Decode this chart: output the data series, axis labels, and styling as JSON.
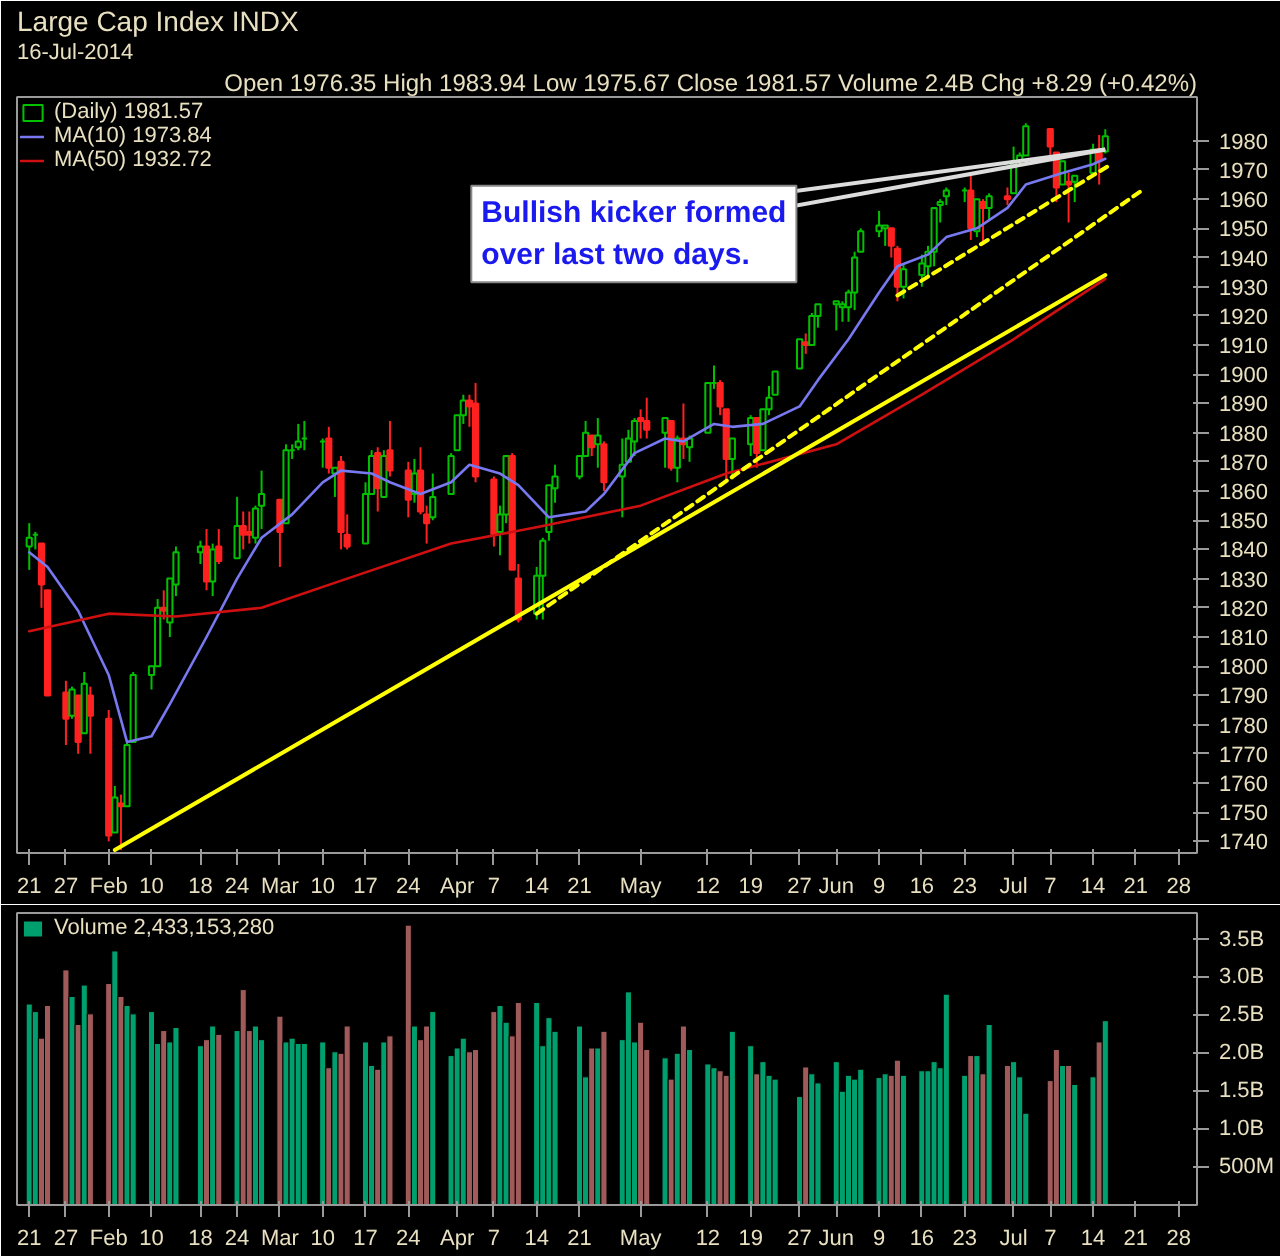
{
  "chart_data": [
    {
      "type": "candlestick",
      "title": "Large Cap Index INDX",
      "subtitle": "16-Jul-2014",
      "annotations": [
        "Open 1976.35 High 1983.94 Low 1975.67 Close 1981.57 Volume 2.4B Chg +8.29 (+0.42%)",
        {
          "text": "Bullish kicker formed\nover last two days.",
          "x": "2014-07-16",
          "y": 1977
        }
      ],
      "series": [
        {
          "type": "candlestick",
          "name": "(Daily) 1981.57",
          "x": [
            "2014-01-21",
            "2014-01-22",
            "2014-01-23",
            "2014-01-24",
            "2014-01-27",
            "2014-01-28",
            "2014-01-29",
            "2014-01-30",
            "2014-01-31",
            "2014-02-03",
            "2014-02-04",
            "2014-02-05",
            "2014-02-06",
            "2014-02-07",
            "2014-02-10",
            "2014-02-11",
            "2014-02-12",
            "2014-02-13",
            "2014-02-14",
            "2014-02-18",
            "2014-02-19",
            "2014-02-20",
            "2014-02-21",
            "2014-02-24",
            "2014-02-25",
            "2014-02-26",
            "2014-02-27",
            "2014-02-28",
            "2014-03-03",
            "2014-03-04",
            "2014-03-05",
            "2014-03-06",
            "2014-03-07",
            "2014-03-10",
            "2014-03-11",
            "2014-03-12",
            "2014-03-13",
            "2014-03-14",
            "2014-03-17",
            "2014-03-18",
            "2014-03-19",
            "2014-03-20",
            "2014-03-21",
            "2014-03-24",
            "2014-03-25",
            "2014-03-26",
            "2014-03-27",
            "2014-03-28",
            "2014-03-31",
            "2014-04-01",
            "2014-04-02",
            "2014-04-03",
            "2014-04-04",
            "2014-04-07",
            "2014-04-08",
            "2014-04-09",
            "2014-04-10",
            "2014-04-11",
            "2014-04-14",
            "2014-04-15",
            "2014-04-16",
            "2014-04-17",
            "2014-04-21",
            "2014-04-22",
            "2014-04-23",
            "2014-04-24",
            "2014-04-25",
            "2014-04-28",
            "2014-04-29",
            "2014-04-30",
            "2014-05-01",
            "2014-05-02",
            "2014-05-05",
            "2014-05-06",
            "2014-05-07",
            "2014-05-08",
            "2014-05-09",
            "2014-05-12",
            "2014-05-13",
            "2014-05-14",
            "2014-05-15",
            "2014-05-16",
            "2014-05-19",
            "2014-05-20",
            "2014-05-21",
            "2014-05-22",
            "2014-05-23",
            "2014-05-27",
            "2014-05-28",
            "2014-05-29",
            "2014-05-30",
            "2014-06-02",
            "2014-06-03",
            "2014-06-04",
            "2014-06-05",
            "2014-06-06",
            "2014-06-09",
            "2014-06-10",
            "2014-06-11",
            "2014-06-12",
            "2014-06-13",
            "2014-06-16",
            "2014-06-17",
            "2014-06-18",
            "2014-06-19",
            "2014-06-20",
            "2014-06-23",
            "2014-06-24",
            "2014-06-25",
            "2014-06-26",
            "2014-06-27",
            "2014-06-30",
            "2014-07-01",
            "2014-07-02",
            "2014-07-03",
            "2014-07-07",
            "2014-07-08",
            "2014-07-09",
            "2014-07-10",
            "2014-07-11",
            "2014-07-14",
            "2014-07-15",
            "2014-07-16"
          ],
          "ohlc": [
            [
              1841,
              1849,
              1833,
              1844
            ],
            [
              1845,
              1846,
              1840,
              1845
            ],
            [
              1842,
              1842,
              1820,
              1828
            ],
            [
              1826,
              1826,
              1790,
              1790
            ],
            [
              1791,
              1795,
              1773,
              1782
            ],
            [
              1783,
              1793,
              1782,
              1792
            ],
            [
              1790,
              1790,
              1770,
              1774
            ],
            [
              1777,
              1798,
              1777,
              1794
            ],
            [
              1790,
              1793,
              1770,
              1783
            ],
            [
              1782,
              1785,
              1740,
              1742
            ],
            [
              1743,
              1759,
              1743,
              1755
            ],
            [
              1753,
              1756,
              1737,
              1752
            ],
            [
              1752,
              1774,
              1752,
              1773
            ],
            [
              1774,
              1798,
              1774,
              1797
            ],
            [
              1797,
              1800,
              1792,
              1800
            ],
            [
              1800,
              1823,
              1800,
              1820
            ],
            [
              1820,
              1826,
              1816,
              1819
            ],
            [
              1815,
              1830,
              1810,
              1830
            ],
            [
              1828,
              1841,
              1824,
              1839
            ],
            [
              1839,
              1843,
              1835,
              1841
            ],
            [
              1841,
              1847,
              1826,
              1829
            ],
            [
              1829,
              1842,
              1824,
              1840
            ],
            [
              1841,
              1847,
              1835,
              1836
            ],
            [
              1837,
              1858,
              1837,
              1848
            ],
            [
              1848,
              1853,
              1840,
              1845
            ],
            [
              1846,
              1853,
              1842,
              1845
            ],
            [
              1844,
              1855,
              1842,
              1854
            ],
            [
              1855,
              1867,
              1847,
              1859
            ],
            [
              1857,
              1857,
              1834,
              1846
            ],
            [
              1849,
              1876,
              1849,
              1874
            ],
            [
              1874,
              1876,
              1871,
              1874
            ],
            [
              1875,
              1883,
              1874,
              1877
            ],
            [
              1878,
              1884,
              1874,
              1878
            ],
            [
              1877,
              1878,
              1868,
              1877
            ],
            [
              1878,
              1882,
              1866,
              1868
            ],
            [
              1866,
              1868,
              1858,
              1868
            ],
            [
              1870,
              1872,
              1840,
              1846
            ],
            [
              1845,
              1852,
              1840,
              1841
            ],
            [
              1842,
              1863,
              1842,
              1859
            ],
            [
              1859,
              1874,
              1859,
              1872
            ],
            [
              1873,
              1875,
              1853,
              1861
            ],
            [
              1858,
              1874,
              1858,
              1872
            ],
            [
              1874,
              1884,
              1865,
              1867
            ],
            [
              1867,
              1870,
              1851,
              1857
            ],
            [
              1859,
              1871,
              1856,
              1866
            ],
            [
              1867,
              1875,
              1852,
              1853
            ],
            [
              1852,
              1855,
              1842,
              1849
            ],
            [
              1851,
              1866,
              1850,
              1858
            ],
            [
              1859,
              1873,
              1859,
              1872
            ],
            [
              1874,
              1886,
              1874,
              1886
            ],
            [
              1886,
              1893,
              1883,
              1891
            ],
            [
              1891,
              1893,
              1882,
              1889
            ],
            [
              1890,
              1897,
              1863,
              1865
            ],
            [
              1864,
              1865,
              1841,
              1845
            ],
            [
              1846,
              1855,
              1838,
              1852
            ],
            [
              1852,
              1872,
              1849,
              1872
            ],
            [
              1872,
              1873,
              1833,
              1833
            ],
            [
              1830,
              1835,
              1815,
              1816
            ],
            [
              1818,
              1834,
              1816,
              1831
            ],
            [
              1831,
              1844,
              1816,
              1843
            ],
            [
              1846,
              1862,
              1843,
              1862
            ],
            [
              1861,
              1869,
              1856,
              1865
            ],
            [
              1865,
              1872,
              1864,
              1872
            ],
            [
              1872,
              1884,
              1872,
              1880
            ],
            [
              1879,
              1879,
              1872,
              1875
            ],
            [
              1876,
              1885,
              1868,
              1879
            ],
            [
              1876,
              1877,
              1860,
              1863
            ],
            [
              1865,
              1878,
              1851,
              1869
            ],
            [
              1870,
              1881,
              1870,
              1878
            ],
            [
              1877,
              1885,
              1872,
              1884
            ],
            [
              1885,
              1888,
              1878,
              1884
            ],
            [
              1884,
              1892,
              1878,
              1881
            ],
            [
              1880,
              1885,
              1868,
              1885
            ],
            [
              1884,
              1884,
              1867,
              1868
            ],
            [
              1868,
              1879,
              1863,
              1878
            ],
            [
              1878,
              1890,
              1871,
              1876
            ],
            [
              1875,
              1879,
              1870,
              1878
            ],
            [
              1880,
              1897,
              1880,
              1897
            ],
            [
              1897,
              1903,
              1895,
              1897
            ],
            [
              1897,
              1898,
              1886,
              1889
            ],
            [
              1888,
              1888,
              1863,
              1871
            ],
            [
              1871,
              1878,
              1864,
              1878
            ],
            [
              1876,
              1886,
              1872,
              1885
            ],
            [
              1885,
              1885,
              1868,
              1873
            ],
            [
              1874,
              1888,
              1874,
              1888
            ],
            [
              1888,
              1896,
              1886,
              1892
            ],
            [
              1893,
              1901,
              1893,
              1901
            ],
            [
              1902,
              1912,
              1902,
              1912
            ],
            [
              1911,
              1914,
              1907,
              1910
            ],
            [
              1910,
              1921,
              1910,
              1920
            ],
            [
              1920,
              1924,
              1916,
              1924
            ],
            [
              1924,
              1925,
              1915,
              1925
            ],
            [
              1923,
              1925,
              1918,
              1924
            ],
            [
              1923,
              1929,
              1918,
              1928
            ],
            [
              1928,
              1942,
              1922,
              1940
            ],
            [
              1942,
              1950,
              1942,
              1949
            ],
            [
              1949,
              1956,
              1947,
              1951
            ],
            [
              1950,
              1951,
              1944,
              1951
            ],
            [
              1950,
              1950,
              1940,
              1944
            ],
            [
              1943,
              1944,
              1925,
              1930
            ],
            [
              1930,
              1938,
              1926,
              1936
            ],
            [
              1934,
              1941,
              1930,
              1938
            ],
            [
              1937,
              1944,
              1933,
              1942
            ],
            [
              1942,
              1957,
              1937,
              1957
            ],
            [
              1958,
              1960,
              1952,
              1959
            ],
            [
              1961,
              1964,
              1958,
              1963
            ],
            [
              1963,
              1964,
              1959,
              1963
            ],
            [
              1963,
              1969,
              1946,
              1950
            ],
            [
              1949,
              1960,
              1947,
              1960
            ],
            [
              1959,
              1960,
              1945,
              1957
            ],
            [
              1957,
              1962,
              1953,
              1961
            ],
            [
              1961,
              1964,
              1958,
              1960
            ],
            [
              1962,
              1978,
              1962,
              1973
            ],
            [
              1973,
              1976,
              1972,
              1975
            ],
            [
              1975,
              1986,
              1975,
              1985
            ],
            [
              1984,
              1984,
              1975,
              1978
            ],
            [
              1976,
              1976,
              1959,
              1964
            ],
            [
              1965,
              1973,
              1965,
              1973
            ],
            [
              1966,
              1969,
              1952,
              1965
            ],
            [
              1966,
              1968,
              1959,
              1968
            ],
            [
              1969,
              1979,
              1969,
              1977
            ],
            [
              1977,
              1982,
              1965,
              1973
            ],
            [
              1976.35,
              1983.94,
              1975.67,
              1981.57
            ]
          ],
          "colors": [
            "#00c000",
            "#00c000",
            "#ff2020",
            "#ff2020",
            "#ff2020",
            "#00c000",
            "#ff2020",
            "#00c000",
            "#ff2020",
            "#ff2020",
            "#00c000",
            "#ff2020",
            "#00c000",
            "#00c000",
            "#00c000",
            "#00c000",
            "#ff2020",
            "#00c000",
            "#00c000",
            "#00c000",
            "#ff2020",
            "#00c000",
            "#ff2020",
            "#00c000",
            "#ff2020",
            "#ff2020",
            "#00c000",
            "#00c000",
            "#ff2020",
            "#00c000",
            "#00c000",
            "#00c000",
            "#00c000",
            "#00c000",
            "#ff2020",
            "#00c000",
            "#ff2020",
            "#ff2020",
            "#00c000",
            "#00c000",
            "#ff2020",
            "#00c000",
            "#ff2020",
            "#ff2020",
            "#00c000",
            "#ff2020",
            "#ff2020",
            "#00c000",
            "#00c000",
            "#00c000",
            "#00c000",
            "#ff2020",
            "#ff2020",
            "#ff2020",
            "#00c000",
            "#00c000",
            "#ff2020",
            "#ff2020",
            "#00c000",
            "#00c000",
            "#00c000",
            "#00c000",
            "#00c000",
            "#00c000",
            "#ff2020",
            "#00c000",
            "#ff2020",
            "#00c000",
            "#00c000",
            "#00c000",
            "#ff2020",
            "#ff2020",
            "#00c000",
            "#ff2020",
            "#00c000",
            "#ff2020",
            "#00c000",
            "#00c000",
            "#00c000",
            "#ff2020",
            "#ff2020",
            "#00c000",
            "#00c000",
            "#ff2020",
            "#00c000",
            "#00c000",
            "#00c000",
            "#00c000",
            "#ff2020",
            "#00c000",
            "#00c000",
            "#00c000",
            "#00c000",
            "#00c000",
            "#00c000",
            "#00c000",
            "#00c000",
            "#00c000",
            "#ff2020",
            "#ff2020",
            "#00c000",
            "#00c000",
            "#00c000",
            "#00c000",
            "#00c000",
            "#00c000",
            "#00c000",
            "#ff2020",
            "#00c000",
            "#ff2020",
            "#00c000",
            "#ff2020",
            "#00c000",
            "#00c000",
            "#00c000",
            "#ff2020",
            "#ff2020",
            "#00c000",
            "#ff2020",
            "#00c000",
            "#00c000",
            "#ff2020",
            "#00c000"
          ]
        },
        {
          "type": "line",
          "name": "MA(10) 1973.84",
          "color": "#7878f0",
          "x": [
            "2014-01-21",
            "2014-01-24",
            "2014-01-29",
            "2014-02-03",
            "2014-02-06",
            "2014-02-10",
            "2014-02-13",
            "2014-02-19",
            "2014-02-24",
            "2014-02-28",
            "2014-03-05",
            "2014-03-10",
            "2014-03-13",
            "2014-03-18",
            "2014-03-21",
            "2014-03-26",
            "2014-03-31",
            "2014-04-03",
            "2014-04-08",
            "2014-04-11",
            "2014-04-16",
            "2014-04-22",
            "2014-04-25",
            "2014-04-30",
            "2014-05-05",
            "2014-05-08",
            "2014-05-13",
            "2014-05-16",
            "2014-05-21",
            "2014-05-27",
            "2014-05-30",
            "2014-06-04",
            "2014-06-09",
            "2014-06-12",
            "2014-06-17",
            "2014-06-20",
            "2014-06-25",
            "2014-06-30",
            "2014-07-03",
            "2014-07-09",
            "2014-07-14",
            "2014-07-16"
          ],
          "values": [
            1839,
            1834,
            1819,
            1797,
            1774,
            1776,
            1787,
            1810,
            1830,
            1844,
            1852,
            1863,
            1867,
            1866,
            1863,
            1859,
            1863,
            1869,
            1866,
            1862,
            1851,
            1853,
            1859,
            1873,
            1878,
            1877,
            1883,
            1882,
            1883,
            1889,
            1898,
            1912,
            1928,
            1937,
            1941,
            1947,
            1950,
            1957,
            1965,
            1969,
            1972,
            1973.84
          ]
        },
        {
          "type": "line",
          "name": "MA(50) 1932.72",
          "color": "#d01010",
          "x": [
            "2014-01-21",
            "2014-02-03",
            "2014-02-14",
            "2014-02-28",
            "2014-03-14",
            "2014-03-31",
            "2014-04-15",
            "2014-05-01",
            "2014-05-15",
            "2014-06-02",
            "2014-06-16",
            "2014-07-01",
            "2014-07-16"
          ],
          "values": [
            1812,
            1818,
            1817,
            1820,
            1830,
            1842,
            1848,
            1855,
            1866,
            1876,
            1893,
            1912,
            1932.72
          ]
        },
        {
          "type": "line",
          "color": "#ffff00",
          "line_style": "solid",
          "x": [
            "2014-02-04",
            "2014-07-16"
          ],
          "values": [
            1737,
            1934
          ]
        },
        {
          "type": "line",
          "color": "#ffff00",
          "line_style": "dashed",
          "x": [
            "2014-04-14",
            "2014-07-22"
          ],
          "values": [
            1818,
            1963
          ]
        },
        {
          "type": "line",
          "color": "#ffff00",
          "line_style": "dashed",
          "x": [
            "2014-06-12",
            "2014-07-17"
          ],
          "values": [
            1927,
            1972
          ]
        }
      ],
      "xlim": [
        "2014-01-19",
        "2014-07-31"
      ],
      "xticks": [
        {
          "value": "2014-01-21",
          "label": "21"
        },
        {
          "value": "2014-01-27",
          "label": "27"
        },
        {
          "value": "2014-02-03",
          "label": "Feb"
        },
        {
          "value": "2014-02-10",
          "label": "10"
        },
        {
          "value": "2014-02-18",
          "label": "18"
        },
        {
          "value": "2014-02-24",
          "label": "24"
        },
        {
          "value": "2014-03-03",
          "label": "Mar"
        },
        {
          "value": "2014-03-10",
          "label": "10"
        },
        {
          "value": "2014-03-17",
          "label": "17"
        },
        {
          "value": "2014-03-24",
          "label": "24"
        },
        {
          "value": "2014-04-01",
          "label": "Apr"
        },
        {
          "value": "2014-04-07",
          "label": "7"
        },
        {
          "value": "2014-04-14",
          "label": "14"
        },
        {
          "value": "2014-04-21",
          "label": "21"
        },
        {
          "value": "2014-05-01",
          "label": "May"
        },
        {
          "value": "2014-05-12",
          "label": "12"
        },
        {
          "value": "2014-05-19",
          "label": "19"
        },
        {
          "value": "2014-05-27",
          "label": "27"
        },
        {
          "value": "2014-06-02",
          "label": "Jun"
        },
        {
          "value": "2014-06-09",
          "label": "9"
        },
        {
          "value": "2014-06-16",
          "label": "16"
        },
        {
          "value": "2014-06-23",
          "label": "23"
        },
        {
          "value": "2014-07-01",
          "label": "Jul"
        },
        {
          "value": "2014-07-07",
          "label": "7"
        },
        {
          "value": "2014-07-14",
          "label": "14"
        },
        {
          "value": "2014-07-21",
          "label": "21"
        },
        {
          "value": "2014-07-28",
          "label": "28"
        }
      ],
      "ylim": [
        1736,
        1995
      ],
      "yticks": [
        1740,
        1750,
        1760,
        1770,
        1780,
        1790,
        1800,
        1810,
        1820,
        1830,
        1840,
        1850,
        1860,
        1870,
        1880,
        1890,
        1900,
        1910,
        1920,
        1930,
        1940,
        1950,
        1960,
        1970,
        1980
      ],
      "legend": "top left",
      "grid": false
    },
    {
      "type": "bar",
      "series": [
        {
          "name": "Volume 2,433,153,280",
          "x": [
            "2014-01-21",
            "2014-01-22",
            "2014-01-23",
            "2014-01-24",
            "2014-01-27",
            "2014-01-28",
            "2014-01-29",
            "2014-01-30",
            "2014-01-31",
            "2014-02-03",
            "2014-02-04",
            "2014-02-05",
            "2014-02-06",
            "2014-02-07",
            "2014-02-10",
            "2014-02-11",
            "2014-02-12",
            "2014-02-13",
            "2014-02-14",
            "2014-02-18",
            "2014-02-19",
            "2014-02-20",
            "2014-02-21",
            "2014-02-24",
            "2014-02-25",
            "2014-02-26",
            "2014-02-27",
            "2014-02-28",
            "2014-03-03",
            "2014-03-04",
            "2014-03-05",
            "2014-03-06",
            "2014-03-07",
            "2014-03-10",
            "2014-03-11",
            "2014-03-12",
            "2014-03-13",
            "2014-03-14",
            "2014-03-17",
            "2014-03-18",
            "2014-03-19",
            "2014-03-20",
            "2014-03-21",
            "2014-03-24",
            "2014-03-25",
            "2014-03-26",
            "2014-03-27",
            "2014-03-28",
            "2014-03-31",
            "2014-04-01",
            "2014-04-02",
            "2014-04-03",
            "2014-04-04",
            "2014-04-07",
            "2014-04-08",
            "2014-04-09",
            "2014-04-10",
            "2014-04-11",
            "2014-04-14",
            "2014-04-15",
            "2014-04-16",
            "2014-04-17",
            "2014-04-21",
            "2014-04-22",
            "2014-04-23",
            "2014-04-24",
            "2014-04-25",
            "2014-04-28",
            "2014-04-29",
            "2014-04-30",
            "2014-05-01",
            "2014-05-02",
            "2014-05-05",
            "2014-05-06",
            "2014-05-07",
            "2014-05-08",
            "2014-05-09",
            "2014-05-12",
            "2014-05-13",
            "2014-05-14",
            "2014-05-15",
            "2014-05-16",
            "2014-05-19",
            "2014-05-20",
            "2014-05-21",
            "2014-05-22",
            "2014-05-23",
            "2014-05-27",
            "2014-05-28",
            "2014-05-29",
            "2014-05-30",
            "2014-06-02",
            "2014-06-03",
            "2014-06-04",
            "2014-06-05",
            "2014-06-06",
            "2014-06-09",
            "2014-06-10",
            "2014-06-11",
            "2014-06-12",
            "2014-06-13",
            "2014-06-16",
            "2014-06-17",
            "2014-06-18",
            "2014-06-19",
            "2014-06-20",
            "2014-06-23",
            "2014-06-24",
            "2014-06-25",
            "2014-06-26",
            "2014-06-27",
            "2014-06-30",
            "2014-07-01",
            "2014-07-02",
            "2014-07-03",
            "2014-07-07",
            "2014-07-08",
            "2014-07-09",
            "2014-07-10",
            "2014-07-11",
            "2014-07-14",
            "2014-07-15",
            "2014-07-16"
          ],
          "colors": [
            "#00a06e",
            "#00a06e",
            "#a05a5a",
            "#a05a5a",
            "#a05a5a",
            "#00a06e",
            "#a05a5a",
            "#00a06e",
            "#a05a5a",
            "#a05a5a",
            "#00a06e",
            "#a05a5a",
            "#00a06e",
            "#00a06e",
            "#00a06e",
            "#00a06e",
            "#a05a5a",
            "#00a06e",
            "#00a06e",
            "#00a06e",
            "#a05a5a",
            "#00a06e",
            "#a05a5a",
            "#00a06e",
            "#a05a5a",
            "#a05a5a",
            "#00a06e",
            "#00a06e",
            "#a05a5a",
            "#00a06e",
            "#00a06e",
            "#00a06e",
            "#00a06e",
            "#00a06e",
            "#a05a5a",
            "#00a06e",
            "#a05a5a",
            "#a05a5a",
            "#00a06e",
            "#00a06e",
            "#a05a5a",
            "#00a06e",
            "#a05a5a",
            "#a05a5a",
            "#00a06e",
            "#a05a5a",
            "#a05a5a",
            "#00a06e",
            "#00a06e",
            "#00a06e",
            "#00a06e",
            "#a05a5a",
            "#a05a5a",
            "#a05a5a",
            "#00a06e",
            "#00a06e",
            "#a05a5a",
            "#a05a5a",
            "#00a06e",
            "#00a06e",
            "#00a06e",
            "#00a06e",
            "#00a06e",
            "#00a06e",
            "#a05a5a",
            "#00a06e",
            "#a05a5a",
            "#00a06e",
            "#00a06e",
            "#00a06e",
            "#a05a5a",
            "#a05a5a",
            "#00a06e",
            "#a05a5a",
            "#00a06e",
            "#a05a5a",
            "#00a06e",
            "#00a06e",
            "#00a06e",
            "#a05a5a",
            "#a05a5a",
            "#00a06e",
            "#00a06e",
            "#a05a5a",
            "#00a06e",
            "#00a06e",
            "#00a06e",
            "#00a06e",
            "#a05a5a",
            "#00a06e",
            "#00a06e",
            "#00a06e",
            "#00a06e",
            "#00a06e",
            "#00a06e",
            "#00a06e",
            "#00a06e",
            "#00a06e",
            "#a05a5a",
            "#a05a5a",
            "#00a06e",
            "#00a06e",
            "#00a06e",
            "#00a06e",
            "#00a06e",
            "#00a06e",
            "#00a06e",
            "#a05a5a",
            "#00a06e",
            "#a05a5a",
            "#00a06e",
            "#a05a5a",
            "#00a06e",
            "#00a06e",
            "#00a06e",
            "#a05a5a",
            "#a05a5a",
            "#00a06e",
            "#a05a5a",
            "#00a06e",
            "#00a06e",
            "#a05a5a",
            "#00a06e"
          ],
          "values": [
            2650000000.0,
            2550000000.0,
            2200000000.0,
            2630000000.0,
            3100000000.0,
            2750000000.0,
            2380000000.0,
            2900000000.0,
            2520000000.0,
            2920000000.0,
            3350000000.0,
            2750000000.0,
            2630000000.0,
            2520000000.0,
            2550000000.0,
            2130000000.0,
            2300000000.0,
            2150000000.0,
            2340000000.0,
            2100000000.0,
            2180000000.0,
            2360000000.0,
            2250000000.0,
            2300000000.0,
            2840000000.0,
            2300000000.0,
            2360000000.0,
            2180000000.0,
            2490000000.0,
            2150000000.0,
            2200000000.0,
            2130000000.0,
            2130000000.0,
            2150000000.0,
            1810000000.0,
            2020000000.0,
            2000000000.0,
            2360000000.0,
            2150000000.0,
            1840000000.0,
            1790000000.0,
            2150000000.0,
            2230000000.0,
            3690000000.0,
            2360000000.0,
            2180000000.0,
            2360000000.0,
            2550000000.0,
            1970000000.0,
            2070000000.0,
            2200000000.0,
            2020000000.0,
            2050000000.0,
            2550000000.0,
            2630000000.0,
            2410000000.0,
            2230000000.0,
            2670000000.0,
            2670000000.0,
            2100000000.0,
            2470000000.0,
            2290000000.0,
            2360000000.0,
            1690000000.0,
            2070000000.0,
            2070000000.0,
            2290000000.0,
            2180000000.0,
            2810000000.0,
            2150000000.0,
            2410000000.0,
            2050000000.0,
            1940000000.0,
            1660000000.0,
            2000000000.0,
            2360000000.0,
            2050000000.0,
            1860000000.0,
            1810000000.0,
            1770000000.0,
            1710000000.0,
            2290000000.0,
            2100000000.0,
            1730000000.0,
            1890000000.0,
            1710000000.0,
            1660000000.0,
            1430000000.0,
            1820000000.0,
            1730000000.0,
            1610000000.0,
            1890000000.0,
            1500000000.0,
            1710000000.0,
            1660000000.0,
            1790000000.0,
            1680000000.0,
            1730000000.0,
            1710000000.0,
            1910000000.0,
            1710000000.0,
            1770000000.0,
            1770000000.0,
            1890000000.0,
            1810000000.0,
            2780000000.0,
            1710000000.0,
            1970000000.0,
            1970000000.0,
            1730000000.0,
            2380000000.0,
            1840000000.0,
            1890000000.0,
            1690000000.0,
            1210000000.0,
            1640000000.0,
            2050000000.0,
            1840000000.0,
            1840000000.0,
            1590000000.0,
            1690000000.0,
            2150000000.0,
            2430000000.0
          ]
        }
      ],
      "xlim": [
        "2014-01-19",
        "2014-07-31"
      ],
      "xticks": [
        {
          "value": "2014-01-21",
          "label": "21"
        },
        {
          "value": "2014-01-27",
          "label": "27"
        },
        {
          "value": "2014-02-03",
          "label": "Feb"
        },
        {
          "value": "2014-02-10",
          "label": "10"
        },
        {
          "value": "2014-02-18",
          "label": "18"
        },
        {
          "value": "2014-02-24",
          "label": "24"
        },
        {
          "value": "2014-03-03",
          "label": "Mar"
        },
        {
          "value": "2014-03-10",
          "label": "10"
        },
        {
          "value": "2014-03-17",
          "label": "17"
        },
        {
          "value": "2014-03-24",
          "label": "24"
        },
        {
          "value": "2014-04-01",
          "label": "Apr"
        },
        {
          "value": "2014-04-07",
          "label": "7"
        },
        {
          "value": "2014-04-14",
          "label": "14"
        },
        {
          "value": "2014-04-21",
          "label": "21"
        },
        {
          "value": "2014-05-01",
          "label": "May"
        },
        {
          "value": "2014-05-12",
          "label": "12"
        },
        {
          "value": "2014-05-19",
          "label": "19"
        },
        {
          "value": "2014-05-27",
          "label": "27"
        },
        {
          "value": "2014-06-02",
          "label": "Jun"
        },
        {
          "value": "2014-06-09",
          "label": "9"
        },
        {
          "value": "2014-06-16",
          "label": "16"
        },
        {
          "value": "2014-06-23",
          "label": "23"
        },
        {
          "value": "2014-07-01",
          "label": "Jul"
        },
        {
          "value": "2014-07-07",
          "label": "7"
        },
        {
          "value": "2014-07-14",
          "label": "14"
        },
        {
          "value": "2014-07-21",
          "label": "21"
        },
        {
          "value": "2014-07-28",
          "label": "28"
        }
      ],
      "ylim": [
        0,
        3850000000.0
      ],
      "yticks": [
        {
          "value": 500000000.0,
          "label": "500M"
        },
        {
          "value": 1000000000.0,
          "label": "1.0B"
        },
        {
          "value": 1500000000.0,
          "label": "1.5B"
        },
        {
          "value": 2000000000.0,
          "label": "2.0B"
        },
        {
          "value": 2500000000.0,
          "label": "2.5B"
        },
        {
          "value": 3000000000.0,
          "label": "3.0B"
        },
        {
          "value": 3500000000.0,
          "label": "3.5B"
        }
      ],
      "legend": "top left",
      "grid": false
    }
  ]
}
